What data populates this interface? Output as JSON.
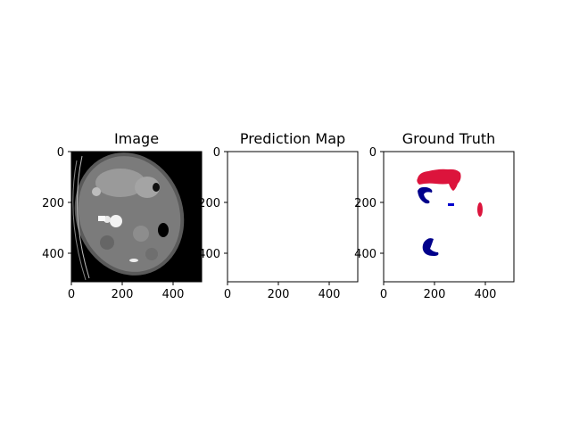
{
  "panels": [
    {
      "title": "Image",
      "xticks": [
        "0",
        "200",
        "400"
      ],
      "yticks": [
        "0",
        "200",
        "400"
      ],
      "content": "ct-scan"
    },
    {
      "title": "Prediction Map",
      "xticks": [
        "0",
        "200",
        "400"
      ],
      "yticks": [
        "0",
        "200",
        "400"
      ],
      "content": "empty"
    },
    {
      "title": "Ground Truth",
      "xticks": [
        "0",
        "200",
        "400"
      ],
      "yticks": [
        "0",
        "200",
        "400"
      ],
      "content": "segmentation-mask"
    }
  ],
  "colors": {
    "background": "#ffffff",
    "ct_background": "#000000",
    "mask_red": "#dc143c",
    "mask_dark_blue": "#00008b",
    "mask_blue": "#0000cd"
  }
}
